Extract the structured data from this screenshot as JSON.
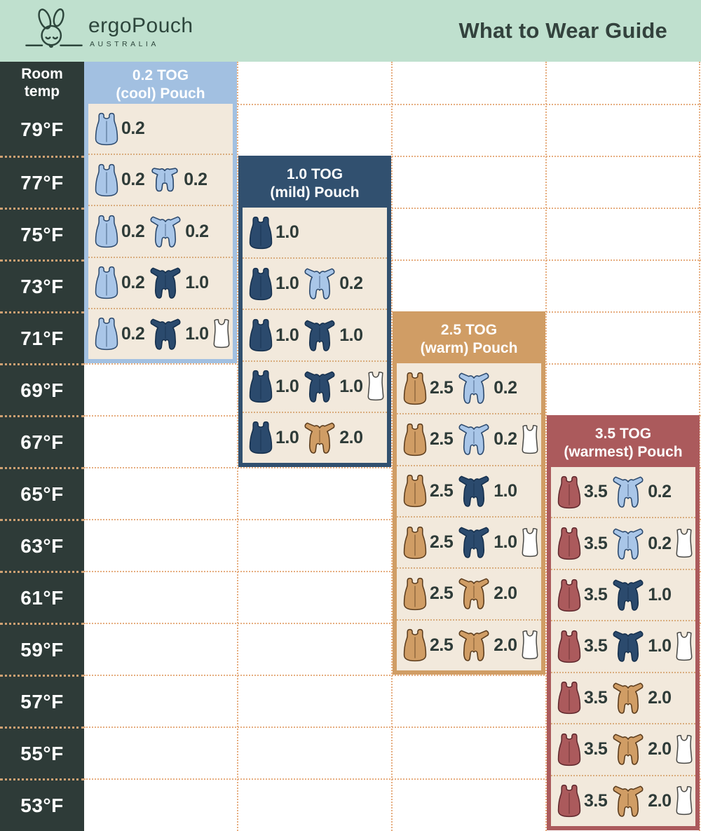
{
  "header": {
    "brand": "ergoPouch",
    "brand_sub": "AUSTRALIA",
    "title": "What to Wear Guide"
  },
  "temp_column": {
    "header_line1": "Room",
    "header_line2": "temp",
    "temps": [
      "79°F",
      "77°F",
      "75°F",
      "73°F",
      "71°F",
      "69°F",
      "67°F",
      "65°F",
      "63°F",
      "61°F",
      "59°F",
      "57°F",
      "55°F",
      "53°F"
    ]
  },
  "colors": {
    "mint": "#bfe0ce",
    "charcoal": "#2e3b38",
    "cream": "#f2e9dc",
    "grid_dots": "#e6ad7f",
    "temp_dots": "#cfa173",
    "row_dots": "#d9ad7e",
    "number_text": "#2e3b38",
    "icon": {
      "lightblue": {
        "fill": "#a9c6e8",
        "stroke": "#2d4a6e"
      },
      "navy": {
        "fill": "#2b4a6d",
        "stroke": "#16304d"
      },
      "tan": {
        "fill": "#d09d65",
        "stroke": "#5c3d1e"
      },
      "red": {
        "fill": "#ab5a5c",
        "stroke": "#5f282d"
      },
      "white": {
        "fill": "#ffffff",
        "stroke": "#4a4a47"
      }
    }
  },
  "columns": [
    {
      "id": "0-2-tog",
      "title_line1": "0.2 TOG",
      "title_line2": "(cool) Pouch",
      "color": "#a2c0e1",
      "rows": [
        {
          "temp": "79°F",
          "items": [
            {
              "icon": "sleep-bag",
              "color": "lightblue",
              "tog": "0.2"
            }
          ]
        },
        {
          "temp": "77°F",
          "items": [
            {
              "icon": "sleep-bag",
              "color": "lightblue",
              "tog": "0.2"
            },
            {
              "icon": "romper",
              "color": "lightblue",
              "tog": "0.2"
            }
          ]
        },
        {
          "temp": "75°F",
          "items": [
            {
              "icon": "sleep-bag",
              "color": "lightblue",
              "tog": "0.2"
            },
            {
              "icon": "sleepsuit",
              "color": "lightblue",
              "tog": "0.2"
            }
          ]
        },
        {
          "temp": "73°F",
          "items": [
            {
              "icon": "sleep-bag",
              "color": "lightblue",
              "tog": "0.2"
            },
            {
              "icon": "sleepsuit",
              "color": "navy",
              "tog": "1.0"
            }
          ]
        },
        {
          "temp": "71°F",
          "items": [
            {
              "icon": "sleep-bag",
              "color": "lightblue",
              "tog": "0.2"
            },
            {
              "icon": "sleepsuit",
              "color": "navy",
              "tog": "1.0"
            },
            {
              "icon": "singlet",
              "color": "white"
            }
          ]
        }
      ]
    },
    {
      "id": "1-0-tog",
      "title_line1": "1.0 TOG",
      "title_line2": "(mild) Pouch",
      "color": "#31506f",
      "rows": [
        {
          "temp": "75°F",
          "items": [
            {
              "icon": "sleep-bag",
              "color": "navy",
              "tog": "1.0"
            }
          ]
        },
        {
          "temp": "73°F",
          "items": [
            {
              "icon": "sleep-bag",
              "color": "navy",
              "tog": "1.0"
            },
            {
              "icon": "sleepsuit",
              "color": "lightblue",
              "tog": "0.2"
            }
          ]
        },
        {
          "temp": "71°F",
          "items": [
            {
              "icon": "sleep-bag",
              "color": "navy",
              "tog": "1.0"
            },
            {
              "icon": "sleepsuit",
              "color": "navy",
              "tog": "1.0"
            }
          ]
        },
        {
          "temp": "69°F",
          "items": [
            {
              "icon": "sleep-bag",
              "color": "navy",
              "tog": "1.0"
            },
            {
              "icon": "sleepsuit",
              "color": "navy",
              "tog": "1.0"
            },
            {
              "icon": "singlet",
              "color": "white"
            }
          ]
        },
        {
          "temp": "67°F",
          "items": [
            {
              "icon": "sleep-bag",
              "color": "navy",
              "tog": "1.0"
            },
            {
              "icon": "sleepsuit",
              "color": "tan",
              "tog": "2.0"
            }
          ]
        }
      ]
    },
    {
      "id": "2-5-tog",
      "title_line1": "2.5 TOG",
      "title_line2": "(warm) Pouch",
      "color": "#d09d65",
      "rows": [
        {
          "temp": "69°F",
          "items": [
            {
              "icon": "sleep-bag",
              "color": "tan",
              "tog": "2.5"
            },
            {
              "icon": "sleepsuit",
              "color": "lightblue",
              "tog": "0.2"
            }
          ]
        },
        {
          "temp": "67°F",
          "items": [
            {
              "icon": "sleep-bag",
              "color": "tan",
              "tog": "2.5"
            },
            {
              "icon": "sleepsuit",
              "color": "lightblue",
              "tog": "0.2"
            },
            {
              "icon": "singlet",
              "color": "white"
            }
          ]
        },
        {
          "temp": "65°F",
          "items": [
            {
              "icon": "sleep-bag",
              "color": "tan",
              "tog": "2.5"
            },
            {
              "icon": "sleepsuit",
              "color": "navy",
              "tog": "1.0"
            }
          ]
        },
        {
          "temp": "63°F",
          "items": [
            {
              "icon": "sleep-bag",
              "color": "tan",
              "tog": "2.5"
            },
            {
              "icon": "sleepsuit",
              "color": "navy",
              "tog": "1.0"
            },
            {
              "icon": "singlet",
              "color": "white"
            }
          ]
        },
        {
          "temp": "61°F",
          "items": [
            {
              "icon": "sleep-bag",
              "color": "tan",
              "tog": "2.5"
            },
            {
              "icon": "sleepsuit",
              "color": "tan",
              "tog": "2.0"
            }
          ]
        },
        {
          "temp": "59°F",
          "items": [
            {
              "icon": "sleep-bag",
              "color": "tan",
              "tog": "2.5"
            },
            {
              "icon": "sleepsuit",
              "color": "tan",
              "tog": "2.0"
            },
            {
              "icon": "singlet",
              "color": "white"
            }
          ]
        }
      ]
    },
    {
      "id": "3-5-tog",
      "title_line1": "3.5 TOG",
      "title_line2": "(warmest) Pouch",
      "color": "#ab5a5c",
      "rows": [
        {
          "temp": "65°F",
          "items": [
            {
              "icon": "sleep-bag",
              "color": "red",
              "tog": "3.5"
            },
            {
              "icon": "sleepsuit",
              "color": "lightblue",
              "tog": "0.2"
            }
          ]
        },
        {
          "temp": "63°F",
          "items": [
            {
              "icon": "sleep-bag",
              "color": "red",
              "tog": "3.5"
            },
            {
              "icon": "sleepsuit",
              "color": "lightblue",
              "tog": "0.2"
            },
            {
              "icon": "singlet",
              "color": "white"
            }
          ]
        },
        {
          "temp": "61°F",
          "items": [
            {
              "icon": "sleep-bag",
              "color": "red",
              "tog": "3.5"
            },
            {
              "icon": "sleepsuit",
              "color": "navy",
              "tog": "1.0"
            }
          ]
        },
        {
          "temp": "59°F",
          "items": [
            {
              "icon": "sleep-bag",
              "color": "red",
              "tog": "3.5"
            },
            {
              "icon": "sleepsuit",
              "color": "navy",
              "tog": "1.0"
            },
            {
              "icon": "singlet",
              "color": "white"
            }
          ]
        },
        {
          "temp": "57°F",
          "items": [
            {
              "icon": "sleep-bag",
              "color": "red",
              "tog": "3.5"
            },
            {
              "icon": "sleepsuit",
              "color": "tan",
              "tog": "2.0"
            }
          ]
        },
        {
          "temp": "55°F",
          "items": [
            {
              "icon": "sleep-bag",
              "color": "red",
              "tog": "3.5"
            },
            {
              "icon": "sleepsuit",
              "color": "tan",
              "tog": "2.0"
            },
            {
              "icon": "singlet",
              "color": "white"
            }
          ]
        },
        {
          "temp": "53°F",
          "items": [
            {
              "icon": "sleep-bag",
              "color": "red",
              "tog": "3.5"
            },
            {
              "icon": "sleepsuit",
              "color": "tan",
              "tog": "2.0"
            },
            {
              "icon": "singlet",
              "color": "white"
            }
          ]
        }
      ]
    }
  ]
}
